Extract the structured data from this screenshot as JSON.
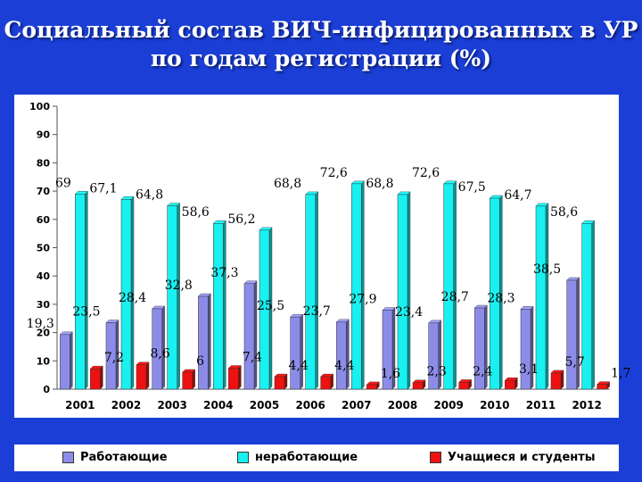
{
  "title_line1": "Социальный состав ВИЧ-инфицированных в УР",
  "title_line2": "по годам регистрации (%)",
  "chart_data": {
    "type": "bar",
    "categories": [
      "2001",
      "2002",
      "2003",
      "2004",
      "2005",
      "2006",
      "2007",
      "2008",
      "2009",
      "2010",
      "2011",
      "2012"
    ],
    "series": [
      {
        "name": "Работающие",
        "color": "#8c8ce8",
        "values": [
          19.3,
          23.5,
          28.4,
          32.8,
          37.3,
          25.5,
          23.7,
          27.9,
          23.4,
          28.7,
          28.3,
          38.5
        ],
        "labels": [
          "19,3",
          "23,5",
          "28,4",
          "32,8",
          "37,3",
          "25,5",
          "23,7",
          "27,9",
          "23,4",
          "28,7",
          "28,3",
          "38,5"
        ]
      },
      {
        "name": "неработающие",
        "color": "#19f0f0",
        "values": [
          69,
          67.1,
          64.8,
          58.6,
          56.2,
          68.8,
          72.6,
          68.8,
          72.6,
          67.5,
          64.7,
          58.6
        ],
        "labels": [
          "69",
          "67,1",
          "64,8",
          "58,6",
          "56,2",
          "68,8",
          "72,6",
          "68,8",
          "72,6",
          "67,5",
          "64,7",
          "58,6"
        ]
      },
      {
        "name": "Учащиеся и студенты",
        "color": "#ee1111",
        "values": [
          7.2,
          8.6,
          6,
          7.4,
          4.4,
          4.4,
          1.6,
          2.3,
          2.4,
          3.1,
          5.7,
          1.7
        ],
        "labels": [
          "7,2",
          "8,6",
          "6",
          "7,4",
          "4,4",
          "4,4",
          "1,6",
          "2,3",
          "2,4",
          "3,1",
          "5,7",
          "1,7"
        ]
      }
    ],
    "ylim": [
      0,
      100
    ],
    "yticks": [
      "0",
      "10",
      "20",
      "30",
      "40",
      "50",
      "60",
      "70",
      "80",
      "90",
      "100"
    ],
    "grid": false,
    "legend_position": "bottom"
  }
}
